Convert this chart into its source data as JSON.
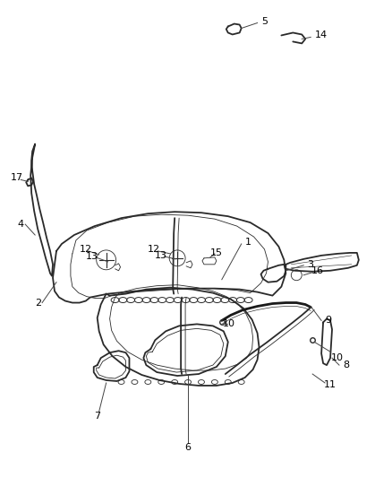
{
  "background_color": "#ffffff",
  "line_color": "#2a2a2a",
  "label_color": "#000000",
  "lw_main": 1.3,
  "lw_thin": 0.6,
  "lw_thick": 2.0
}
